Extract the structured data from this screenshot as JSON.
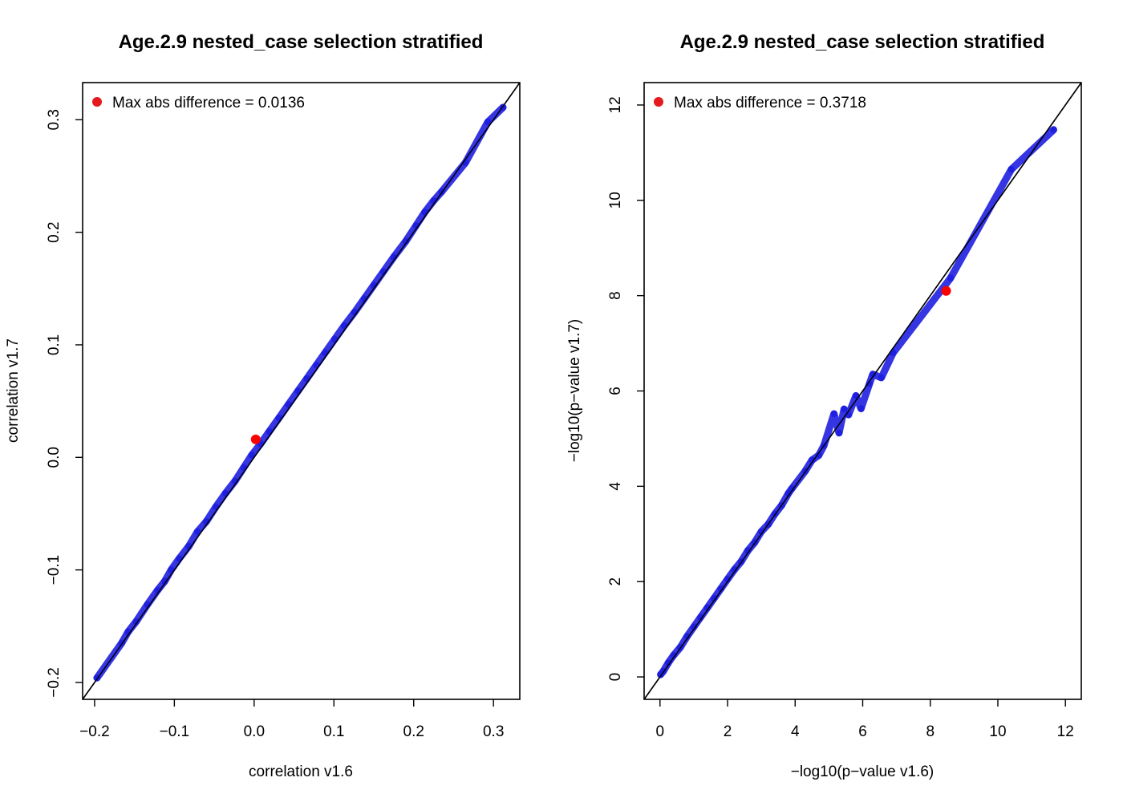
{
  "chart_data": [
    {
      "type": "scatter",
      "title": "Age.2.9 nested_case selection stratified",
      "xlabel": "correlation v1.6",
      "ylabel": "correlation v1.7",
      "xlim": [
        -0.215,
        0.333
      ],
      "ylim": [
        -0.215,
        0.333
      ],
      "xticks": [
        -0.2,
        -0.1,
        0.0,
        0.1,
        0.2,
        0.3
      ],
      "xtick_labels": [
        "−0.2",
        "−0.1",
        "0.0",
        "0.1",
        "0.2",
        "0.3"
      ],
      "yticks": [
        -0.2,
        -0.1,
        0.0,
        0.1,
        0.2,
        0.3
      ],
      "ytick_labels": [
        "−0.2",
        "−0.1",
        "0.0",
        "0.1",
        "0.2",
        "0.3"
      ],
      "grid": false,
      "reference_line": "y = x",
      "legend": {
        "text": "Max abs difference = 0.0136",
        "position": "top-left",
        "color": "#e41a1c"
      },
      "highlight_point": {
        "x": 0.002,
        "y": 0.016,
        "color": "#ff0000"
      },
      "series": [
        {
          "color": "#1f1fe0",
          "points": [
            [
              -0.197,
              -0.196
            ],
            [
              -0.166,
              -0.165
            ],
            [
              -0.158,
              -0.155
            ],
            [
              -0.148,
              -0.146
            ],
            [
              -0.134,
              -0.131
            ],
            [
              -0.121,
              -0.118
            ],
            [
              -0.112,
              -0.11
            ],
            [
              -0.104,
              -0.1
            ],
            [
              -0.094,
              -0.09
            ],
            [
              -0.082,
              -0.079
            ],
            [
              -0.071,
              -0.066
            ],
            [
              -0.06,
              -0.057
            ],
            [
              -0.048,
              -0.044
            ],
            [
              -0.036,
              -0.032
            ],
            [
              -0.024,
              -0.021
            ],
            [
              -0.013,
              -0.009
            ],
            [
              -0.003,
              0.002
            ],
            [
              0.008,
              0.012
            ],
            [
              0.019,
              0.023
            ],
            [
              0.031,
              0.035
            ],
            [
              0.043,
              0.047
            ],
            [
              0.055,
              0.059
            ],
            [
              0.066,
              0.07
            ],
            [
              0.078,
              0.082
            ],
            [
              0.089,
              0.093
            ],
            [
              0.101,
              0.105
            ],
            [
              0.113,
              0.117
            ],
            [
              0.126,
              0.129
            ],
            [
              0.138,
              0.141
            ],
            [
              0.15,
              0.153
            ],
            [
              0.162,
              0.165
            ],
            [
              0.175,
              0.178
            ],
            [
              0.19,
              0.192
            ],
            [
              0.203,
              0.206
            ],
            [
              0.214,
              0.218
            ],
            [
              0.225,
              0.228
            ],
            [
              0.235,
              0.236
            ],
            [
              0.265,
              0.262
            ],
            [
              0.293,
              0.298
            ],
            [
              0.312,
              0.311
            ]
          ]
        }
      ]
    },
    {
      "type": "scatter",
      "title": "Age.2.9 nested_case selection stratified",
      "xlabel": "−log10(p−value v1.6)",
      "ylabel": "−log10(p−value v1.7)",
      "xlim": [
        -0.47,
        12.47
      ],
      "ylim": [
        -0.47,
        12.47
      ],
      "xticks": [
        0,
        2,
        4,
        6,
        8,
        10,
        12
      ],
      "xtick_labels": [
        "0",
        "2",
        "4",
        "6",
        "8",
        "10",
        "12"
      ],
      "yticks": [
        0,
        2,
        4,
        6,
        8,
        10,
        12
      ],
      "ytick_labels": [
        "0",
        "2",
        "4",
        "6",
        "8",
        "10",
        "12"
      ],
      "grid": false,
      "reference_line": "y = x",
      "legend": {
        "text": "Max abs difference = 0.3718",
        "position": "top-left",
        "color": "#e41a1c"
      },
      "highlight_point": {
        "x": 8.47,
        "y": 8.1,
        "color": "#ff0000"
      },
      "series": [
        {
          "color": "#1f1fe0",
          "points": [
            [
              0.02,
              0.05
            ],
            [
              0.1,
              0.12
            ],
            [
              0.25,
              0.3
            ],
            [
              0.4,
              0.45
            ],
            [
              0.6,
              0.62
            ],
            [
              0.8,
              0.85
            ],
            [
              1.0,
              1.05
            ],
            [
              1.2,
              1.25
            ],
            [
              1.4,
              1.45
            ],
            [
              1.6,
              1.65
            ],
            [
              1.8,
              1.85
            ],
            [
              2.0,
              2.05
            ],
            [
              2.2,
              2.25
            ],
            [
              2.4,
              2.42
            ],
            [
              2.6,
              2.65
            ],
            [
              2.8,
              2.82
            ],
            [
              3.0,
              3.05
            ],
            [
              3.2,
              3.2
            ],
            [
              3.4,
              3.42
            ],
            [
              3.6,
              3.6
            ],
            [
              3.8,
              3.85
            ],
            [
              3.9,
              3.95
            ],
            [
              4.3,
              4.32
            ],
            [
              4.5,
              4.55
            ],
            [
              4.7,
              4.65
            ],
            [
              4.85,
              4.85
            ],
            [
              5.15,
              5.52
            ],
            [
              5.3,
              5.12
            ],
            [
              5.45,
              5.62
            ],
            [
              5.58,
              5.5
            ],
            [
              5.8,
              5.9
            ],
            [
              5.95,
              5.63
            ],
            [
              6.2,
              6.15
            ],
            [
              6.3,
              6.35
            ],
            [
              6.55,
              6.28
            ],
            [
              6.9,
              6.8
            ],
            [
              8.6,
              8.37
            ],
            [
              10.4,
              10.65
            ],
            [
              11.65,
              11.48
            ]
          ]
        }
      ]
    }
  ]
}
